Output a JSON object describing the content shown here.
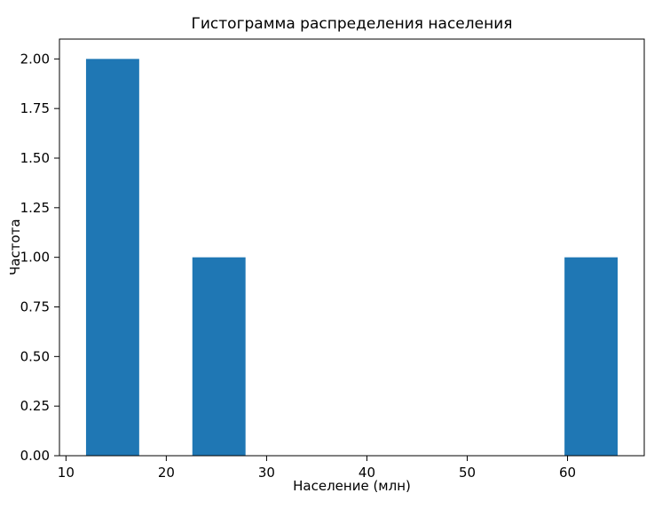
{
  "chart_data": {
    "type": "bar",
    "subtype": "histogram",
    "title": "Гистограмма распределения населения",
    "xlabel": "Население (млн)",
    "ylabel": "Частота",
    "bar_color": "#1f77b4",
    "bins": [
      {
        "start": 12.0,
        "end": 17.3,
        "count": 2
      },
      {
        "start": 22.6,
        "end": 27.9,
        "count": 1
      },
      {
        "start": 59.7,
        "end": 65.0,
        "count": 1
      }
    ],
    "xlim": [
      9.35,
      67.65
    ],
    "ylim": [
      0,
      2.1
    ],
    "xticks": [
      10,
      20,
      30,
      40,
      50,
      60
    ],
    "yticks": [
      "0.00",
      "0.25",
      "0.50",
      "0.75",
      "1.00",
      "1.25",
      "1.50",
      "1.75",
      "2.00"
    ],
    "grid": false,
    "legend_visible": false
  }
}
